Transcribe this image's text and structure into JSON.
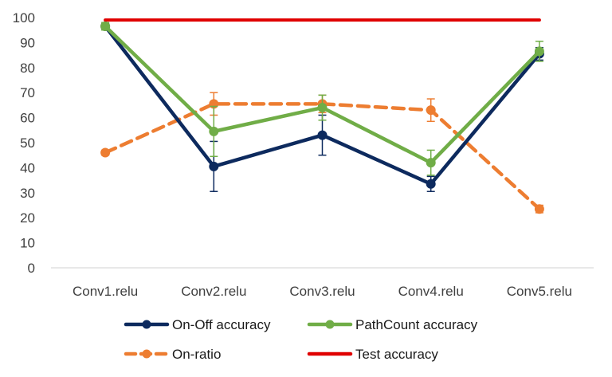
{
  "chart_data": {
    "type": "line",
    "title": "",
    "xlabel": "",
    "ylabel": "",
    "ylim": [
      0,
      100
    ],
    "yticks": [
      "0",
      "10",
      "20",
      "30",
      "40",
      "50",
      "60",
      "70",
      "80",
      "90",
      "100"
    ],
    "categories": [
      "Conv1.relu",
      "Conv2.relu",
      "Conv3.relu",
      "Conv4.relu",
      "Conv5.relu"
    ],
    "grid": false,
    "legend_position": "bottom",
    "series": [
      {
        "name": "On-Off accuracy",
        "color": "#0d2a5e",
        "style": "solid",
        "marker": "circle",
        "values": [
          96.5,
          40.5,
          53,
          33.5,
          85.5
        ],
        "errors": [
          1.0,
          10.0,
          8.0,
          3.0,
          2.5
        ]
      },
      {
        "name": "PathCount accuracy",
        "color": "#70ad47",
        "style": "solid",
        "marker": "circle",
        "values": [
          96.5,
          54.5,
          64,
          42,
          86.5
        ],
        "errors": [
          1.5,
          10.0,
          5.0,
          5.0,
          4.0
        ]
      },
      {
        "name": "On-ratio",
        "color": "#ed7d31",
        "style": "dashed",
        "marker": "circle",
        "values": [
          46,
          65.5,
          65.5,
          63,
          23.5
        ],
        "errors": [
          1.0,
          4.5,
          3.5,
          4.5,
          1.5
        ]
      },
      {
        "name": "Test accuracy",
        "color": "#e00000",
        "style": "solid",
        "marker": "none",
        "values": [
          99,
          99,
          99,
          99,
          99
        ],
        "errors": null
      }
    ]
  }
}
